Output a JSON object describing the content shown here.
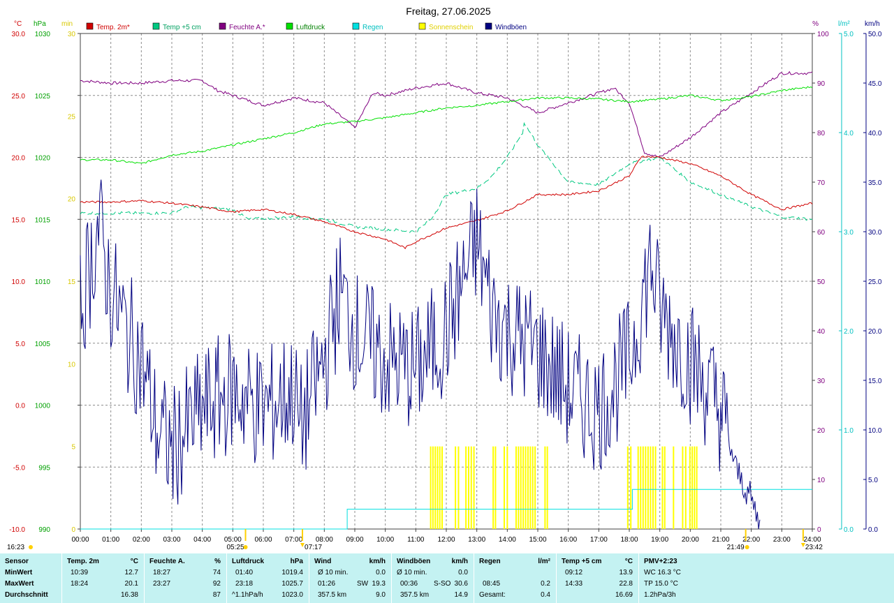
{
  "title": "Freitag, 27.06.2025",
  "colors": {
    "temp": "#d00000",
    "temp5": "#00c880",
    "humid": "#800080",
    "press": "#00e000",
    "rain": "#00e0e0",
    "sun": "#ffff00",
    "gust": "#000080"
  },
  "axes": {
    "temp": {
      "unit": "°C",
      "ticks": [
        "30.0",
        "25.0",
        "20.0",
        "15.0",
        "10.0",
        "5.0",
        "0.0",
        "-5.0",
        "-10.0"
      ],
      "range": [
        -10,
        30
      ]
    },
    "press": {
      "unit": "hPa",
      "ticks": [
        "1030",
        "1025",
        "1020",
        "1015",
        "1010",
        "1005",
        "1000",
        "995",
        "990"
      ],
      "range": [
        990,
        1030
      ]
    },
    "sunmin": {
      "unit": "min",
      "ticks": [
        "30",
        "25",
        "20",
        "15",
        "10",
        "5",
        "0"
      ],
      "range": [
        0,
        30
      ]
    },
    "humid": {
      "unit": "%",
      "ticks": [
        "100",
        "90",
        "80",
        "70",
        "60",
        "50",
        "40",
        "30",
        "20",
        "10",
        "0"
      ],
      "range": [
        0,
        100
      ]
    },
    "rain": {
      "unit": "l/m²",
      "ticks": [
        "5.0",
        "4.0",
        "3.0",
        "2.0",
        "1.0",
        "0.0"
      ],
      "range": [
        0,
        5
      ]
    },
    "wind": {
      "unit": "km/h",
      "ticks": [
        "50.0",
        "45.0",
        "40.0",
        "35.0",
        "30.0",
        "25.0",
        "20.0",
        "15.0",
        "10.0",
        "5.0",
        "0.0"
      ],
      "range": [
        0,
        50
      ]
    },
    "x_ticks": [
      "00:00",
      "01:00",
      "02:00",
      "03:00",
      "04:00",
      "05:00",
      "06:00",
      "07:00",
      "08:00",
      "09:00",
      "10:00",
      "11:00",
      "12:00",
      "13:00",
      "14:00",
      "15:00",
      "16:00",
      "17:00",
      "18:00",
      "19:00",
      "20:00",
      "21:00",
      "22:00",
      "23:00",
      "24:00"
    ]
  },
  "legend": [
    {
      "label": "Temp. 2m*",
      "color": "#d00000",
      "text_color": "#d00000"
    },
    {
      "label": "Temp +5 cm",
      "color": "#00c880",
      "text_color": "#00a060"
    },
    {
      "label": "Feuchte A.*",
      "color": "#800080",
      "text_color": "#800080"
    },
    {
      "label": "Luftdruck",
      "color": "#00e000",
      "text_color": "#008000"
    },
    {
      "label": "Regen",
      "color": "#00e0e0",
      "text_color": "#00c0c0"
    },
    {
      "label": "Sonnenschein",
      "color": "#ffff00",
      "text_color": "#e0d000"
    },
    {
      "label": "Windböen",
      "color": "#000080",
      "text_color": "#000080"
    }
  ],
  "time_marks": {
    "bottom_left": "16:23",
    "sunrise": "05:25",
    "midpoint": "07:17",
    "bottom_right_1": "21:49",
    "bottom_right_2": "23:42"
  },
  "chart_data": {
    "type": "line",
    "x_unit": "hour of day",
    "xlim": [
      0,
      24
    ],
    "series": [
      {
        "name": "Temp. 2m*",
        "unit": "°C",
        "points": [
          [
            0,
            16.4
          ],
          [
            1,
            16.4
          ],
          [
            2,
            16.5
          ],
          [
            3,
            16.3
          ],
          [
            4,
            16.0
          ],
          [
            5,
            15.6
          ],
          [
            6,
            15.8
          ],
          [
            7,
            15.4
          ],
          [
            8,
            14.8
          ],
          [
            9,
            14.0
          ],
          [
            10,
            13.4
          ],
          [
            10.65,
            12.7
          ],
          [
            11,
            13.2
          ],
          [
            12,
            14.3
          ],
          [
            13,
            14.9
          ],
          [
            14,
            15.7
          ],
          [
            15,
            17.0
          ],
          [
            16,
            17.0
          ],
          [
            17,
            17.3
          ],
          [
            18,
            18.5
          ],
          [
            18.4,
            20.1
          ],
          [
            19,
            20.0
          ],
          [
            20,
            19.5
          ],
          [
            21,
            18.5
          ],
          [
            22,
            17.0
          ],
          [
            23,
            15.8
          ],
          [
            24,
            16.3
          ]
        ]
      },
      {
        "name": "Temp +5 cm",
        "unit": "°C",
        "points": [
          [
            0,
            15.5
          ],
          [
            3,
            15.5
          ],
          [
            3.5,
            16.0
          ],
          [
            5,
            15.8
          ],
          [
            5.5,
            15.0
          ],
          [
            7,
            15.2
          ],
          [
            8,
            15.0
          ],
          [
            9,
            14.4
          ],
          [
            10,
            14.2
          ],
          [
            11,
            14.0
          ],
          [
            11.5,
            15.0
          ],
          [
            12,
            17.0
          ],
          [
            13,
            17.5
          ],
          [
            13.5,
            18.5
          ],
          [
            14,
            20.0
          ],
          [
            14.5,
            22.0
          ],
          [
            14.55,
            22.8
          ],
          [
            15,
            21.0
          ],
          [
            16,
            18.0
          ],
          [
            17,
            17.8
          ],
          [
            18,
            19.5
          ],
          [
            19,
            20.0
          ],
          [
            20,
            18.0
          ],
          [
            21,
            17.0
          ],
          [
            22,
            16.0
          ],
          [
            23,
            15.2
          ],
          [
            24,
            15.0
          ]
        ]
      },
      {
        "name": "Feuchte A.*",
        "unit": "%",
        "points": [
          [
            0,
            90.5
          ],
          [
            1,
            90
          ],
          [
            2,
            90
          ],
          [
            3,
            90.5
          ],
          [
            4,
            90.5
          ],
          [
            4.5,
            88.5
          ],
          [
            5,
            87.5
          ],
          [
            6,
            85.5
          ],
          [
            7,
            87
          ],
          [
            8,
            86
          ],
          [
            9,
            81
          ],
          [
            9.6,
            88
          ],
          [
            10,
            87.5
          ],
          [
            11,
            89
          ],
          [
            12,
            90
          ],
          [
            13,
            88
          ],
          [
            14,
            87
          ],
          [
            15,
            84
          ],
          [
            16,
            86
          ],
          [
            17,
            88
          ],
          [
            17.5,
            89
          ],
          [
            18,
            86
          ],
          [
            18.5,
            76
          ],
          [
            19,
            75
          ],
          [
            20,
            79
          ],
          [
            21,
            84
          ],
          [
            22,
            88
          ],
          [
            23,
            92
          ],
          [
            24,
            92
          ]
        ]
      },
      {
        "name": "Luftdruck",
        "unit": "hPa",
        "points": [
          [
            0,
            1019.8
          ],
          [
            1,
            1019.8
          ],
          [
            2,
            1019.5
          ],
          [
            3,
            1020.2
          ],
          [
            4,
            1020.5
          ],
          [
            5,
            1021
          ],
          [
            6,
            1021.5
          ],
          [
            7,
            1022
          ],
          [
            8,
            1022.7
          ],
          [
            9,
            1022.9
          ],
          [
            10,
            1023.2
          ],
          [
            11,
            1023.6
          ],
          [
            12,
            1024
          ],
          [
            13,
            1024.2
          ],
          [
            14,
            1024.5
          ],
          [
            15,
            1024.8
          ],
          [
            16,
            1024.8
          ],
          [
            17,
            1024.7
          ],
          [
            18,
            1024.5
          ],
          [
            19,
            1024.7
          ],
          [
            20,
            1025
          ],
          [
            21,
            1024.6
          ],
          [
            22,
            1024.9
          ],
          [
            23,
            1025.4
          ],
          [
            24,
            1025.7
          ]
        ]
      },
      {
        "name": "Regen",
        "unit": "l/m²",
        "points": [
          [
            0,
            0
          ],
          [
            8.75,
            0
          ],
          [
            8.75,
            0.2
          ],
          [
            18.1,
            0.2
          ],
          [
            18.1,
            0.4
          ],
          [
            24,
            0.4
          ]
        ]
      },
      {
        "name": "Windböen",
        "unit": "km/h",
        "points": [
          [
            0,
            22
          ],
          [
            0.6,
            30.6
          ],
          [
            1,
            24
          ],
          [
            1.5,
            20
          ],
          [
            2,
            17
          ],
          [
            2.5,
            10
          ],
          [
            3,
            8
          ],
          [
            4,
            12
          ],
          [
            5,
            14
          ],
          [
            6,
            12
          ],
          [
            7,
            14
          ],
          [
            7.2,
            10
          ],
          [
            8,
            17
          ],
          [
            8.5,
            24
          ],
          [
            9,
            20
          ],
          [
            10,
            17
          ],
          [
            11,
            16
          ],
          [
            12,
            20
          ],
          [
            13,
            29
          ],
          [
            13.5,
            22
          ],
          [
            14,
            20
          ],
          [
            15,
            18
          ],
          [
            16,
            14
          ],
          [
            17,
            12
          ],
          [
            18,
            17
          ],
          [
            18.7,
            27
          ],
          [
            19,
            22
          ],
          [
            20,
            17
          ],
          [
            21,
            12
          ],
          [
            21.5,
            6
          ],
          [
            22,
            3
          ],
          [
            22.3,
            0
          ]
        ]
      }
    ],
    "sunshine_intervals_h": [
      [
        11.45,
        11.9
      ],
      [
        12.25,
        12.45
      ],
      [
        12.6,
        12.95
      ],
      [
        13.5,
        13.65
      ],
      [
        13.85,
        14.05
      ],
      [
        14.25,
        14.95
      ],
      [
        15.2,
        15.35
      ],
      [
        17.9,
        18.1
      ],
      [
        18.25,
        18.9
      ],
      [
        19.05,
        19.2
      ],
      [
        19.4,
        19.5
      ],
      [
        19.7,
        19.9
      ],
      [
        19.95,
        20.25
      ]
    ],
    "sunshine_bar_level_min": 5
  },
  "stats": {
    "labels": {
      "sensor": "Sensor",
      "min": "MinWert",
      "max": "MaxWert",
      "avg": "Durchschnitt"
    },
    "temp2m": {
      "title": "Temp. 2m",
      "unit": "°C",
      "min_t": "10:39",
      "min_v": "12.7",
      "max_t": "18:24",
      "max_v": "20.1",
      "avg": "16.38"
    },
    "humid": {
      "title": "Feuchte A.",
      "unit": "%",
      "min_t": "18:27",
      "min_v": "74",
      "max_t": "23:27",
      "max_v": "92",
      "avg": "87"
    },
    "press": {
      "title": "Luftdruck",
      "unit": "hPa",
      "min_t": "01:40",
      "min_v": "1019.4",
      "max_t": "23:18",
      "max_v": "1025.7",
      "trend": "^1.1hPa/h",
      "avg": "1023.0"
    },
    "wind": {
      "title": "Wind",
      "unit": "km/h",
      "min_t": "Ø 10 min.",
      "min_v": "0.0",
      "max_t": "01:26",
      "max_dir": "SW",
      "max_v": "19.3",
      "dist": "357.5 km",
      "avg": "9.0"
    },
    "gust": {
      "title": "Windböen",
      "unit": "km/h",
      "min_t": "Ø 10 min.",
      "min_v": "0.0",
      "max_t": "00:36",
      "max_dir": "S-SO",
      "max_v": "30.6",
      "dist": "357.5 km",
      "avg": "14.9"
    },
    "rain": {
      "title": "Regen",
      "unit": "l/m²",
      "max_t": "08:45",
      "max_v": "0.2",
      "total_label": "Gesamt:",
      "total": "0.4"
    },
    "temp5": {
      "title": "Temp +5 cm",
      "unit": "°C",
      "min_t": "09:12",
      "min_v": "13.9",
      "max_t": "14:33",
      "max_v": "22.8",
      "avg": "16.69"
    },
    "pmv": {
      "title": "PMV+2:23",
      "l1": "WC 16.3 °C",
      "l2": "TP 15.0 °C",
      "l3": "1.2hPa/3h"
    }
  }
}
